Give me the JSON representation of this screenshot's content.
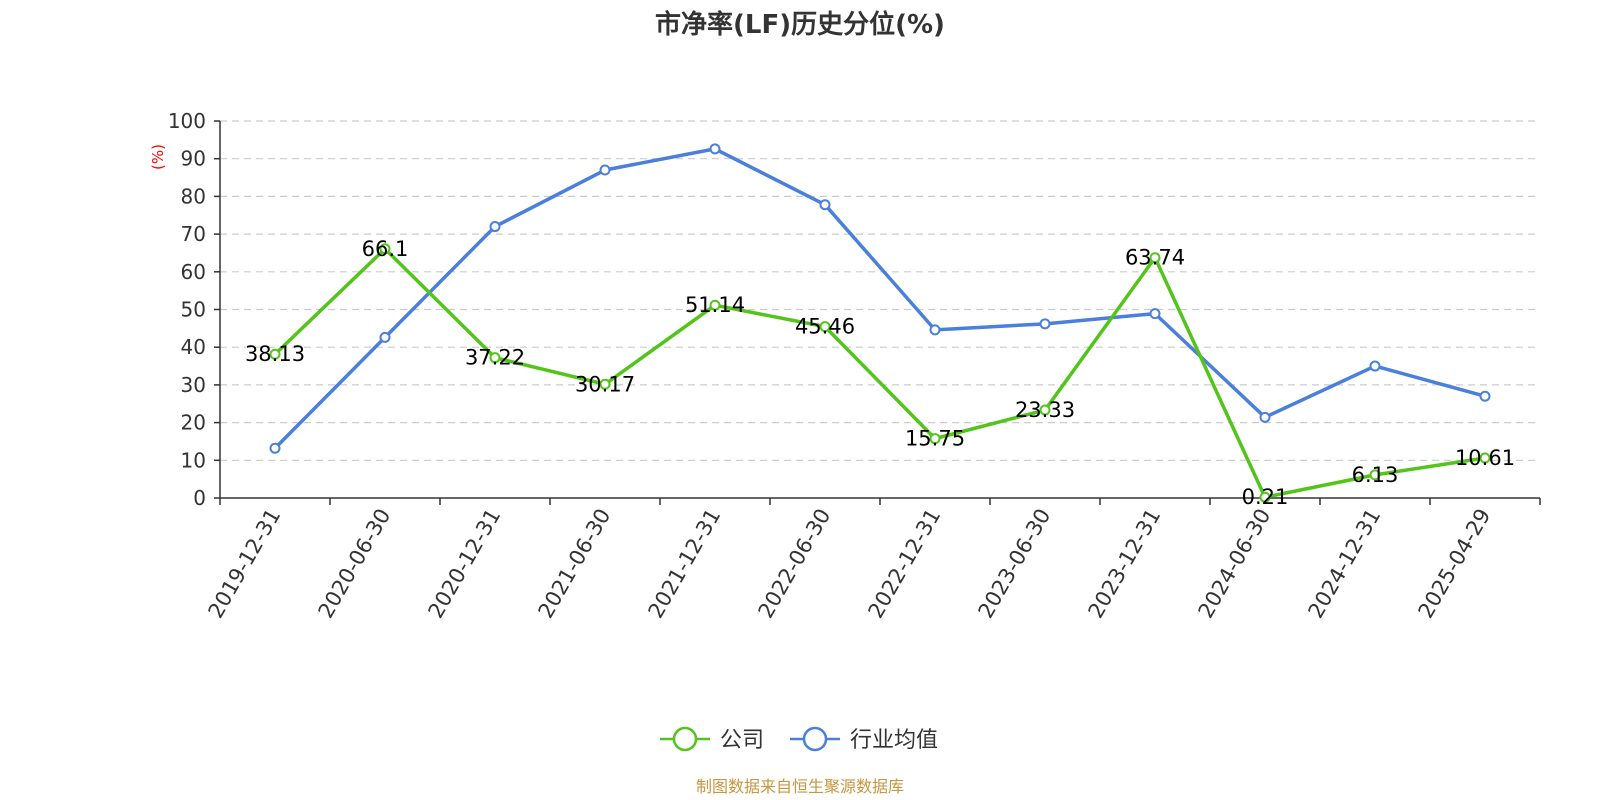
{
  "chart_data": {
    "type": "line",
    "title": "市净率(LF)历史分位(%)",
    "ylabel": "(%)",
    "xlabel": "",
    "ylim": [
      0,
      100
    ],
    "yticks": [
      0,
      10,
      20,
      30,
      40,
      50,
      60,
      70,
      80,
      90,
      100
    ],
    "grid": true,
    "legend_position": "bottom",
    "categories": [
      "2019-12-31",
      "2020-06-30",
      "2020-12-31",
      "2021-06-30",
      "2021-12-31",
      "2022-06-30",
      "2022-12-31",
      "2023-06-30",
      "2023-12-31",
      "2024-06-30",
      "2024-12-31",
      "2025-04-29"
    ],
    "series": [
      {
        "name": "公司",
        "color": "#52c41a",
        "show_labels": true,
        "values": [
          38.13,
          66.1,
          37.22,
          30.17,
          51.14,
          45.46,
          15.75,
          23.33,
          63.74,
          0.21,
          6.13,
          10.61
        ]
      },
      {
        "name": "行业均值",
        "color": "#4a7fdc",
        "show_labels": false,
        "values": [
          13.2,
          42.6,
          72.0,
          87.0,
          92.6,
          77.8,
          44.6,
          46.2,
          48.9,
          21.4,
          35.0,
          27.0
        ]
      }
    ]
  },
  "footer": {
    "source": "制图数据来自恒生聚源数据库",
    "source_color": "#c8963e"
  }
}
